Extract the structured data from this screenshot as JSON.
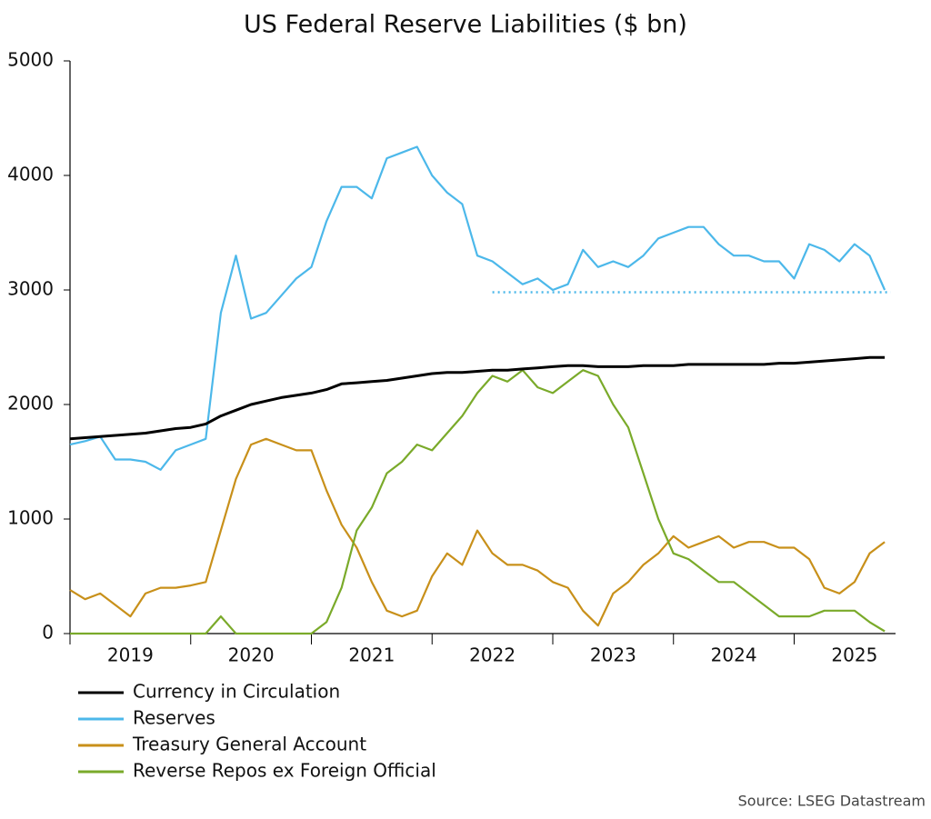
{
  "chart_data": {
    "type": "line",
    "title": "US Federal Reserve Liabilities ($ bn)",
    "source": "Source: LSEG Datastream",
    "x": [
      2019,
      2019.125,
      2019.25,
      2019.375,
      2019.5,
      2019.625,
      2019.75,
      2019.875,
      2020,
      2020.125,
      2020.25,
      2020.375,
      2020.5,
      2020.625,
      2020.75,
      2020.875,
      2021,
      2021.125,
      2021.25,
      2021.375,
      2021.5,
      2021.625,
      2021.75,
      2021.875,
      2022,
      2022.125,
      2022.25,
      2022.375,
      2022.5,
      2022.625,
      2022.75,
      2022.875,
      2023,
      2023.125,
      2023.25,
      2023.375,
      2023.5,
      2023.625,
      2023.75,
      2023.875,
      2024,
      2024.125,
      2024.25,
      2024.375,
      2024.5,
      2024.625,
      2024.75,
      2024.875,
      2025,
      2025.125,
      2025.25,
      2025.375,
      2025.5,
      2025.625,
      2025.75
    ],
    "series": [
      {
        "name": "Currency in Circulation",
        "color": "#000000",
        "values": [
          1700,
          1710,
          1720,
          1730,
          1740,
          1750,
          1770,
          1790,
          1800,
          1830,
          1900,
          1950,
          2000,
          2030,
          2060,
          2080,
          2100,
          2130,
          2180,
          2190,
          2200,
          2210,
          2230,
          2250,
          2270,
          2280,
          2280,
          2290,
          2300,
          2300,
          2310,
          2320,
          2330,
          2340,
          2340,
          2330,
          2330,
          2330,
          2340,
          2340,
          2340,
          2350,
          2350,
          2350,
          2350,
          2350,
          2350,
          2360,
          2360,
          2370,
          2380,
          2390,
          2400,
          2410,
          2410
        ]
      },
      {
        "name": "Reserves",
        "color": "#4cb8ea",
        "values": [
          1650,
          1680,
          1720,
          1520,
          1520,
          1500,
          1430,
          1600,
          1650,
          1700,
          2800,
          3300,
          2750,
          2800,
          2950,
          3100,
          3200,
          3600,
          3900,
          3900,
          3800,
          4150,
          4200,
          4250,
          4000,
          3850,
          3750,
          3300,
          3250,
          3150,
          3050,
          3100,
          3000,
          3050,
          3350,
          3200,
          3250,
          3200,
          3300,
          3450,
          3500,
          3550,
          3550,
          3400,
          3300,
          3300,
          3250,
          3250,
          3100,
          3400,
          3350,
          3250,
          3400,
          3300,
          3000
        ]
      },
      {
        "name": "Treasury General Account",
        "color": "#c8901a",
        "values": [
          380,
          300,
          350,
          250,
          150,
          350,
          400,
          400,
          420,
          450,
          900,
          1350,
          1650,
          1700,
          1650,
          1600,
          1600,
          1250,
          950,
          750,
          450,
          200,
          150,
          200,
          500,
          700,
          600,
          900,
          700,
          600,
          600,
          550,
          450,
          400,
          200,
          70,
          350,
          450,
          600,
          700,
          850,
          750,
          800,
          850,
          750,
          800,
          800,
          750,
          750,
          650,
          400,
          350,
          450,
          700,
          800
        ]
      },
      {
        "name": "Reverse Repos ex Foreign Official",
        "color": "#7aaa2a",
        "values": [
          0,
          0,
          0,
          0,
          0,
          0,
          0,
          0,
          0,
          0,
          150,
          0,
          0,
          0,
          0,
          0,
          0,
          100,
          400,
          900,
          1100,
          1400,
          1500,
          1650,
          1600,
          1750,
          1900,
          2100,
          2250,
          2200,
          2300,
          2150,
          2100,
          2200,
          2300,
          2250,
          2000,
          1800,
          1400,
          1000,
          700,
          650,
          550,
          450,
          450,
          350,
          250,
          150,
          150,
          150,
          200,
          200,
          200,
          100,
          20
        ]
      }
    ],
    "reference_line": {
      "value": 2980,
      "x": [
        2022.5,
        2025.8
      ],
      "color": "#4cb8ea",
      "style": "dotted"
    },
    "xlim": [
      2019,
      2025.84
    ],
    "xticks": [
      {
        "value": 2019,
        "label": "2019"
      },
      {
        "value": 2020,
        "label": "2020"
      },
      {
        "value": 2021,
        "label": "2021"
      },
      {
        "value": 2022,
        "label": "2022"
      },
      {
        "value": 2023,
        "label": "2023"
      },
      {
        "value": 2024,
        "label": "2024"
      },
      {
        "value": 2025,
        "label": "2025"
      }
    ],
    "xtick_label_position": "between",
    "ylim": [
      0,
      5000
    ],
    "yticks": [
      0,
      1000,
      2000,
      3000,
      4000,
      5000
    ],
    "grid": false,
    "legend": "bottom-left"
  }
}
